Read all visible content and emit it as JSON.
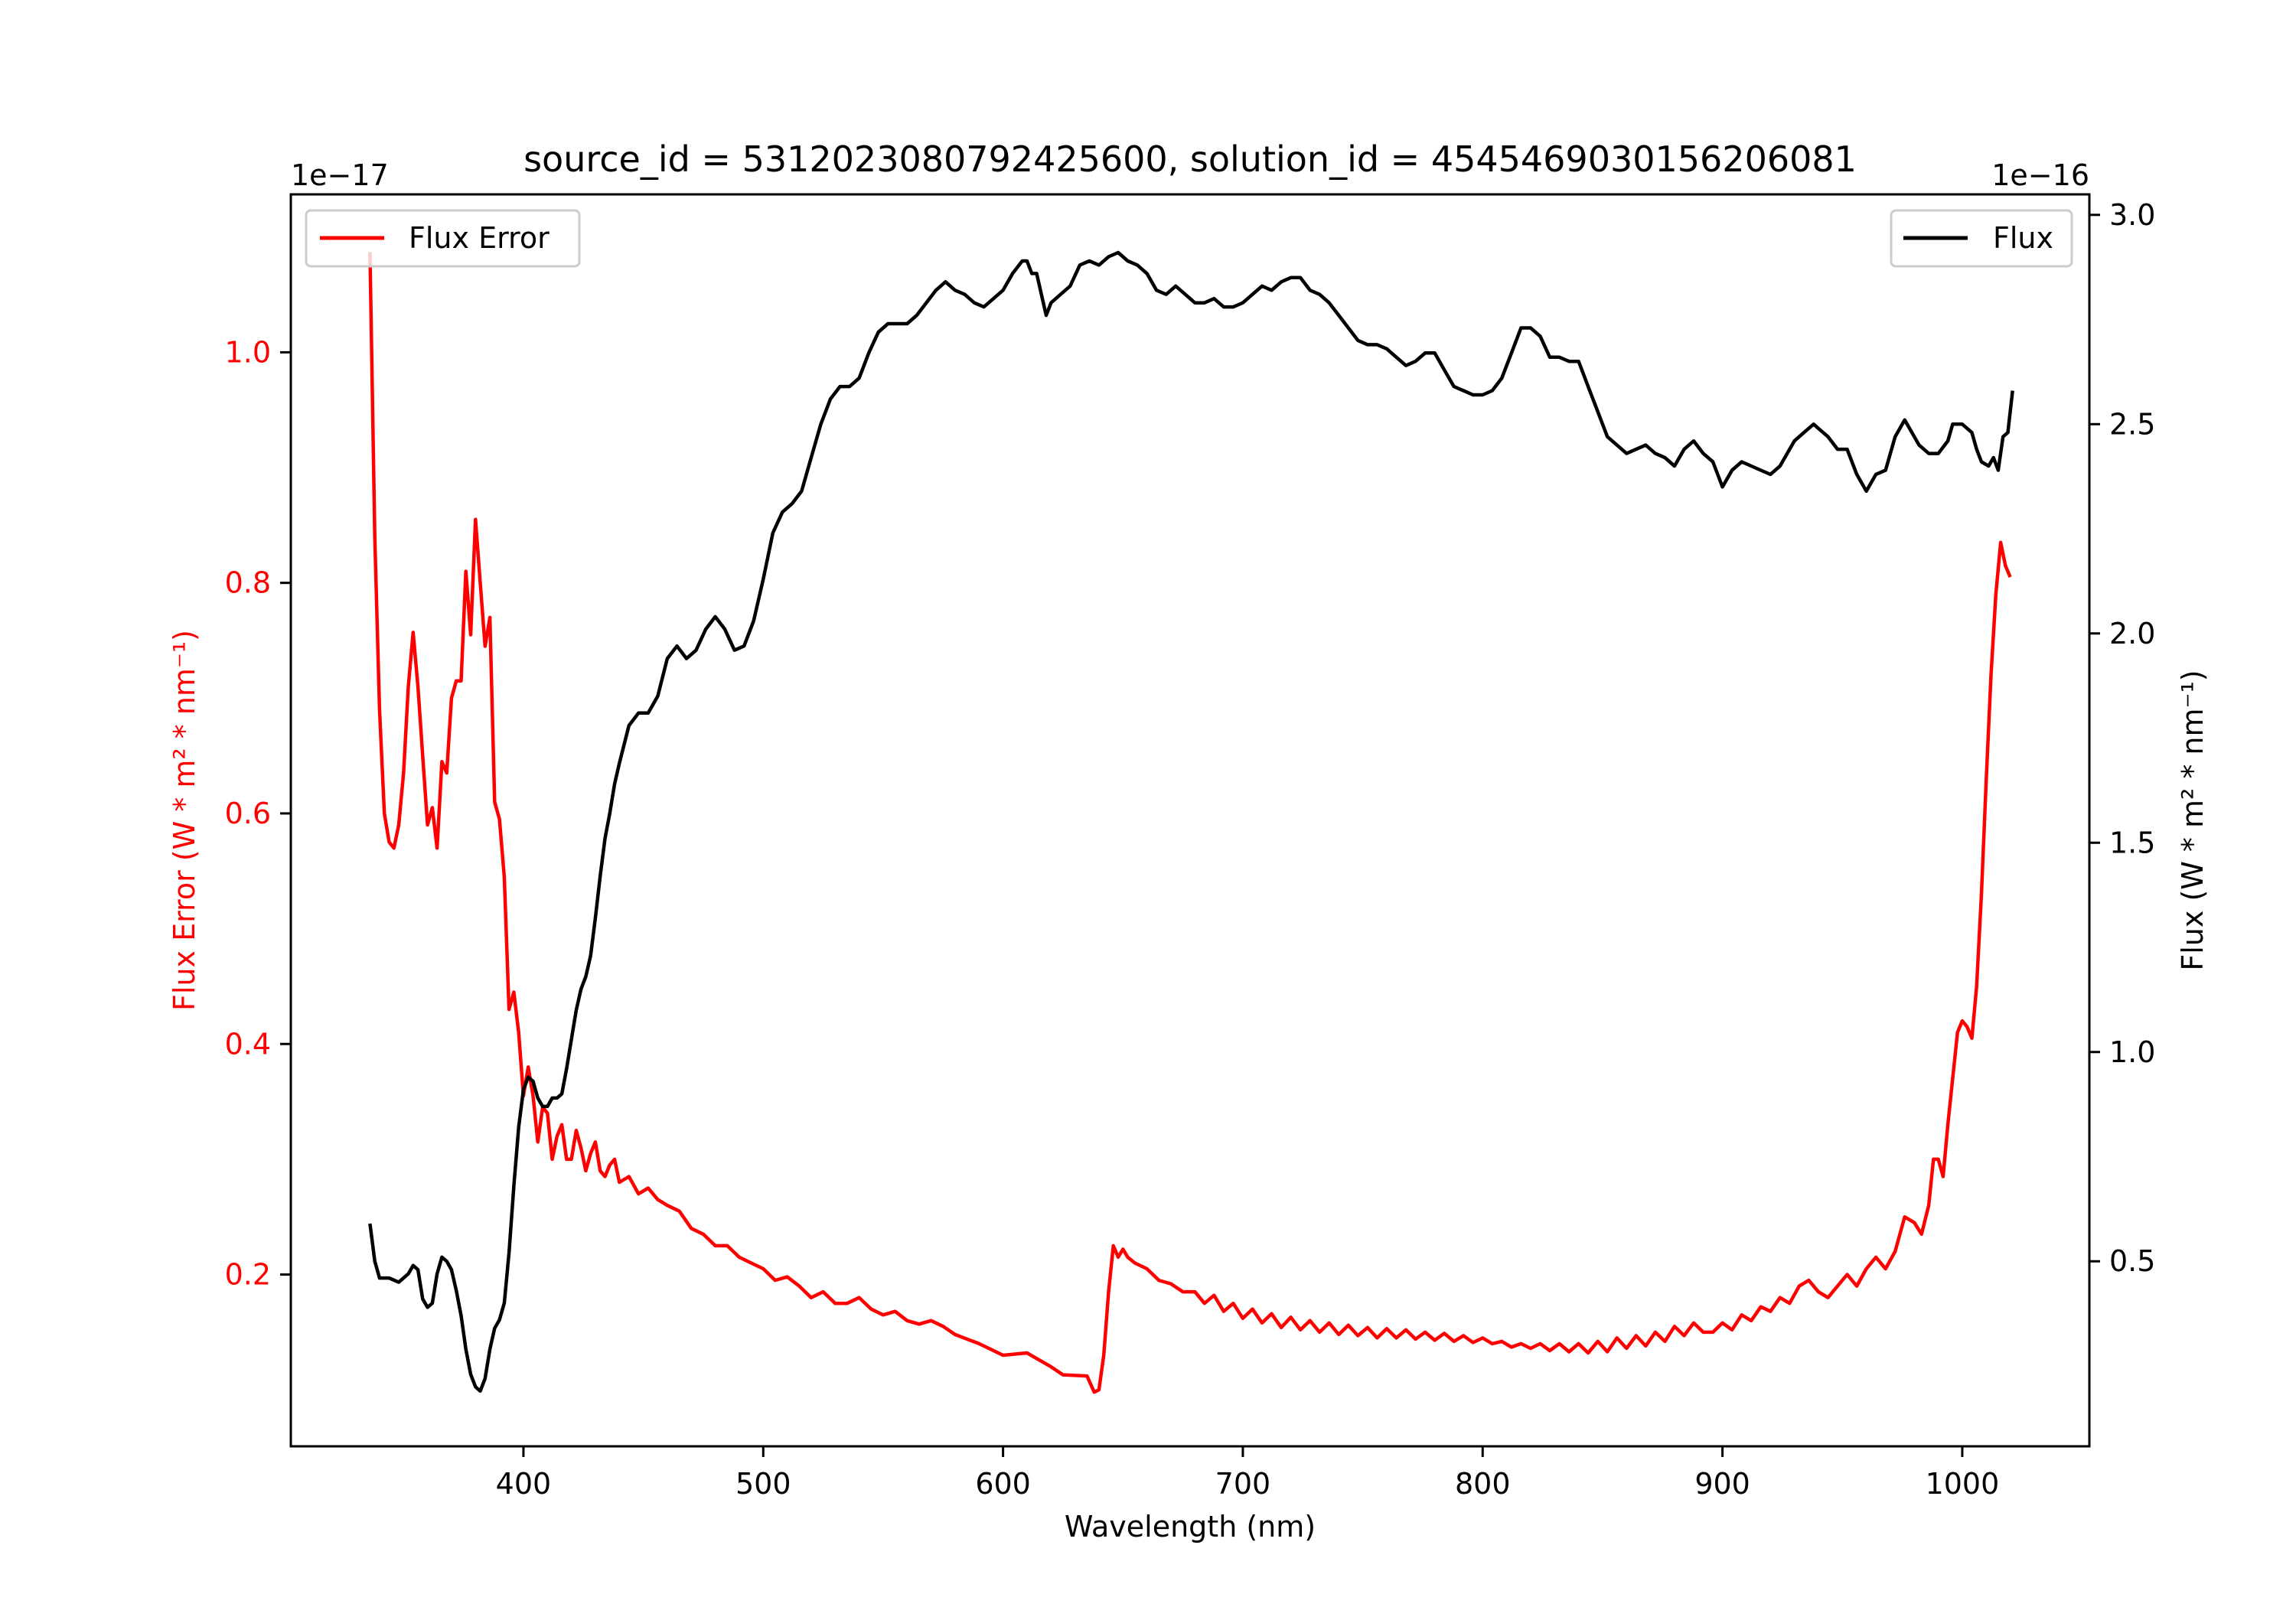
{
  "chart_data": {
    "type": "line",
    "title": "source_id = 5312023080792425600, solution_id = 4545469030156206081",
    "xlabel": "Wavelength (nm)",
    "xlim": [
      303,
      1053
    ],
    "xticks": [
      400,
      500,
      600,
      700,
      800,
      900,
      1000
    ],
    "grid": false,
    "left_axis": {
      "label": "Flux Error (W * m² * nm⁻¹)",
      "offset_text": "1e−17",
      "color": "#ff0000",
      "ylim": [
        0.051,
        1.137
      ],
      "yticks": [
        0.2,
        0.4,
        0.6,
        0.8,
        1.0
      ],
      "ytick_labels": [
        "0.2",
        "0.4",
        "0.6",
        "0.8",
        "1.0"
      ]
    },
    "right_axis": {
      "label": "Flux (W * m² * nm⁻¹)",
      "offset_text": "1e−16",
      "color": "#000000",
      "ylim": [
        0.058,
        3.049
      ],
      "yticks": [
        0.5,
        1.0,
        1.5,
        2.0,
        2.5,
        3.0
      ],
      "ytick_labels": [
        "0.5",
        "1.0",
        "1.5",
        "2.0",
        "2.5",
        "3.0"
      ]
    },
    "series": [
      {
        "name": "Flux Error",
        "axis": "left",
        "color": "#ff0000",
        "legend": "top-left",
        "x": [
          336,
          338,
          340,
          342,
          344,
          346,
          348,
          350,
          352,
          354,
          356,
          358,
          360,
          362,
          364,
          366,
          368,
          370,
          372,
          374,
          376,
          378,
          380,
          382,
          384,
          386,
          388,
          390,
          392,
          394,
          396,
          398,
          400,
          402,
          404,
          406,
          408,
          410,
          412,
          414,
          416,
          418,
          420,
          422,
          424,
          426,
          428,
          430,
          432,
          434,
          436,
          438,
          440,
          444,
          448,
          452,
          456,
          460,
          465,
          470,
          475,
          480,
          485,
          490,
          495,
          500,
          505,
          510,
          515,
          520,
          525,
          530,
          535,
          540,
          545,
          550,
          555,
          560,
          565,
          570,
          575,
          580,
          590,
          600,
          610,
          620,
          625,
          635,
          638,
          640,
          642,
          644,
          646,
          648,
          650,
          652,
          655,
          660,
          665,
          670,
          675,
          680,
          684,
          688,
          692,
          696,
          700,
          704,
          708,
          712,
          716,
          720,
          724,
          728,
          732,
          736,
          740,
          744,
          748,
          752,
          756,
          760,
          764,
          768,
          772,
          776,
          780,
          784,
          788,
          792,
          796,
          800,
          804,
          808,
          812,
          816,
          820,
          824,
          828,
          832,
          836,
          840,
          844,
          848,
          852,
          856,
          860,
          864,
          868,
          872,
          876,
          880,
          884,
          888,
          892,
          896,
          900,
          904,
          908,
          912,
          916,
          920,
          924,
          928,
          932,
          936,
          940,
          944,
          948,
          952,
          956,
          960,
          964,
          968,
          972,
          976,
          980,
          983,
          986,
          988,
          990,
          992,
          994,
          996,
          998,
          1000,
          1002,
          1004,
          1006,
          1008,
          1010,
          1012,
          1014,
          1016,
          1018,
          1020
        ],
        "y": [
          1.087,
          0.84,
          0.69,
          0.6,
          0.575,
          0.57,
          0.59,
          0.635,
          0.71,
          0.757,
          0.71,
          0.65,
          0.59,
          0.605,
          0.57,
          0.645,
          0.635,
          0.7,
          0.715,
          0.715,
          0.81,
          0.755,
          0.855,
          0.8,
          0.745,
          0.77,
          0.61,
          0.595,
          0.545,
          0.43,
          0.445,
          0.41,
          0.355,
          0.38,
          0.355,
          0.315,
          0.345,
          0.34,
          0.3,
          0.32,
          0.33,
          0.3,
          0.3,
          0.325,
          0.31,
          0.29,
          0.305,
          0.315,
          0.29,
          0.285,
          0.295,
          0.3,
          0.28,
          0.285,
          0.27,
          0.275,
          0.265,
          0.26,
          0.255,
          0.24,
          0.235,
          0.225,
          0.225,
          0.215,
          0.21,
          0.205,
          0.195,
          0.198,
          0.19,
          0.18,
          0.185,
          0.175,
          0.175,
          0.18,
          0.17,
          0.165,
          0.168,
          0.16,
          0.157,
          0.16,
          0.155,
          0.148,
          0.14,
          0.13,
          0.132,
          0.12,
          0.113,
          0.112,
          0.098,
          0.1,
          0.13,
          0.185,
          0.225,
          0.215,
          0.222,
          0.215,
          0.21,
          0.205,
          0.195,
          0.192,
          0.185,
          0.185,
          0.175,
          0.182,
          0.168,
          0.175,
          0.162,
          0.17,
          0.158,
          0.166,
          0.154,
          0.163,
          0.152,
          0.16,
          0.15,
          0.158,
          0.148,
          0.156,
          0.147,
          0.154,
          0.145,
          0.153,
          0.145,
          0.152,
          0.144,
          0.15,
          0.143,
          0.149,
          0.142,
          0.147,
          0.141,
          0.145,
          0.14,
          0.142,
          0.137,
          0.14,
          0.136,
          0.14,
          0.134,
          0.14,
          0.133,
          0.14,
          0.132,
          0.142,
          0.133,
          0.145,
          0.136,
          0.147,
          0.138,
          0.15,
          0.142,
          0.155,
          0.147,
          0.158,
          0.15,
          0.15,
          0.158,
          0.152,
          0.165,
          0.16,
          0.172,
          0.168,
          0.18,
          0.175,
          0.19,
          0.195,
          0.185,
          0.18,
          0.19,
          0.2,
          0.19,
          0.205,
          0.215,
          0.205,
          0.22,
          0.25,
          0.245,
          0.235,
          0.26,
          0.3,
          0.3,
          0.285,
          0.33,
          0.37,
          0.41,
          0.42,
          0.415,
          0.405,
          0.45,
          0.53,
          0.63,
          0.72,
          0.79,
          0.835,
          0.815,
          0.805
        ]
      },
      {
        "name": "Flux",
        "axis": "right",
        "color": "#000000",
        "legend": "top-right",
        "x": [
          336,
          338,
          340,
          344,
          348,
          352,
          354,
          356,
          358,
          360,
          362,
          364,
          366,
          368,
          370,
          372,
          374,
          376,
          378,
          380,
          382,
          384,
          386,
          388,
          390,
          392,
          394,
          396,
          398,
          400,
          402,
          404,
          406,
          408,
          410,
          412,
          414,
          416,
          418,
          420,
          422,
          424,
          426,
          428,
          430,
          432,
          434,
          436,
          438,
          440,
          444,
          448,
          452,
          456,
          460,
          464,
          468,
          472,
          476,
          480,
          484,
          488,
          492,
          496,
          500,
          504,
          508,
          512,
          516,
          520,
          524,
          528,
          532,
          536,
          540,
          544,
          548,
          552,
          556,
          560,
          564,
          568,
          572,
          576,
          580,
          584,
          588,
          592,
          596,
          600,
          604,
          608,
          610,
          612,
          614,
          616,
          618,
          620,
          624,
          628,
          632,
          636,
          640,
          644,
          648,
          652,
          656,
          660,
          664,
          668,
          672,
          676,
          680,
          684,
          688,
          692,
          696,
          700,
          704,
          708,
          712,
          716,
          720,
          724,
          728,
          732,
          736,
          740,
          744,
          748,
          752,
          756,
          760,
          764,
          768,
          772,
          776,
          780,
          784,
          788,
          792,
          796,
          800,
          804,
          808,
          812,
          816,
          820,
          824,
          828,
          832,
          836,
          840,
          844,
          848,
          852,
          856,
          860,
          864,
          868,
          872,
          876,
          880,
          884,
          888,
          892,
          896,
          900,
          904,
          908,
          912,
          916,
          920,
          924,
          928,
          930,
          934,
          938,
          940,
          944,
          948,
          952,
          956,
          960,
          964,
          968,
          972,
          976,
          978,
          982,
          986,
          990,
          994,
          996,
          998,
          1000,
          1004,
          1006,
          1008,
          1011,
          1013,
          1015,
          1017,
          1019,
          1021
        ],
        "y": [
          0.59,
          0.5,
          0.46,
          0.46,
          0.45,
          0.47,
          0.49,
          0.48,
          0.41,
          0.39,
          0.4,
          0.47,
          0.51,
          0.5,
          0.48,
          0.43,
          0.37,
          0.29,
          0.23,
          0.2,
          0.19,
          0.22,
          0.29,
          0.34,
          0.36,
          0.4,
          0.52,
          0.68,
          0.82,
          0.91,
          0.94,
          0.93,
          0.89,
          0.87,
          0.87,
          0.89,
          0.89,
          0.9,
          0.96,
          1.03,
          1.1,
          1.15,
          1.18,
          1.23,
          1.32,
          1.42,
          1.51,
          1.57,
          1.64,
          1.69,
          1.78,
          1.81,
          1.81,
          1.85,
          1.94,
          1.97,
          1.94,
          1.96,
          2.01,
          2.04,
          2.01,
          1.96,
          1.97,
          2.03,
          2.13,
          2.24,
          2.29,
          2.31,
          2.34,
          2.42,
          2.5,
          2.56,
          2.59,
          2.59,
          2.61,
          2.67,
          2.72,
          2.74,
          2.74,
          2.74,
          2.76,
          2.79,
          2.82,
          2.84,
          2.82,
          2.81,
          2.79,
          2.78,
          2.8,
          2.82,
          2.86,
          2.89,
          2.89,
          2.86,
          2.86,
          2.81,
          2.76,
          2.79,
          2.81,
          2.83,
          2.88,
          2.89,
          2.88,
          2.9,
          2.91,
          2.89,
          2.88,
          2.86,
          2.82,
          2.81,
          2.83,
          2.81,
          2.79,
          2.79,
          2.8,
          2.78,
          2.78,
          2.79,
          2.81,
          2.83,
          2.82,
          2.84,
          2.85,
          2.85,
          2.82,
          2.81,
          2.79,
          2.76,
          2.73,
          2.7,
          2.69,
          2.69,
          2.68,
          2.66,
          2.64,
          2.65,
          2.67,
          2.67,
          2.63,
          2.59,
          2.58,
          2.57,
          2.57,
          2.58,
          2.61,
          2.67,
          2.73,
          2.73,
          2.71,
          2.66,
          2.66,
          2.65,
          2.65,
          2.59,
          2.53,
          2.47,
          2.45,
          2.43,
          2.44,
          2.45,
          2.43,
          2.42,
          2.4,
          2.44,
          2.46,
          2.43,
          2.41,
          2.35,
          2.39,
          2.41,
          2.4,
          2.39,
          2.38,
          2.4,
          2.44,
          2.46,
          2.48,
          2.5,
          2.49,
          2.47,
          2.44,
          2.44,
          2.38,
          2.34,
          2.38,
          2.39,
          2.47,
          2.51,
          2.49,
          2.45,
          2.43,
          2.43,
          2.46,
          2.5,
          2.5,
          2.5,
          2.48,
          2.44,
          2.41,
          2.4,
          2.42,
          2.39,
          2.47,
          2.48,
          2.58
        ]
      }
    ]
  }
}
